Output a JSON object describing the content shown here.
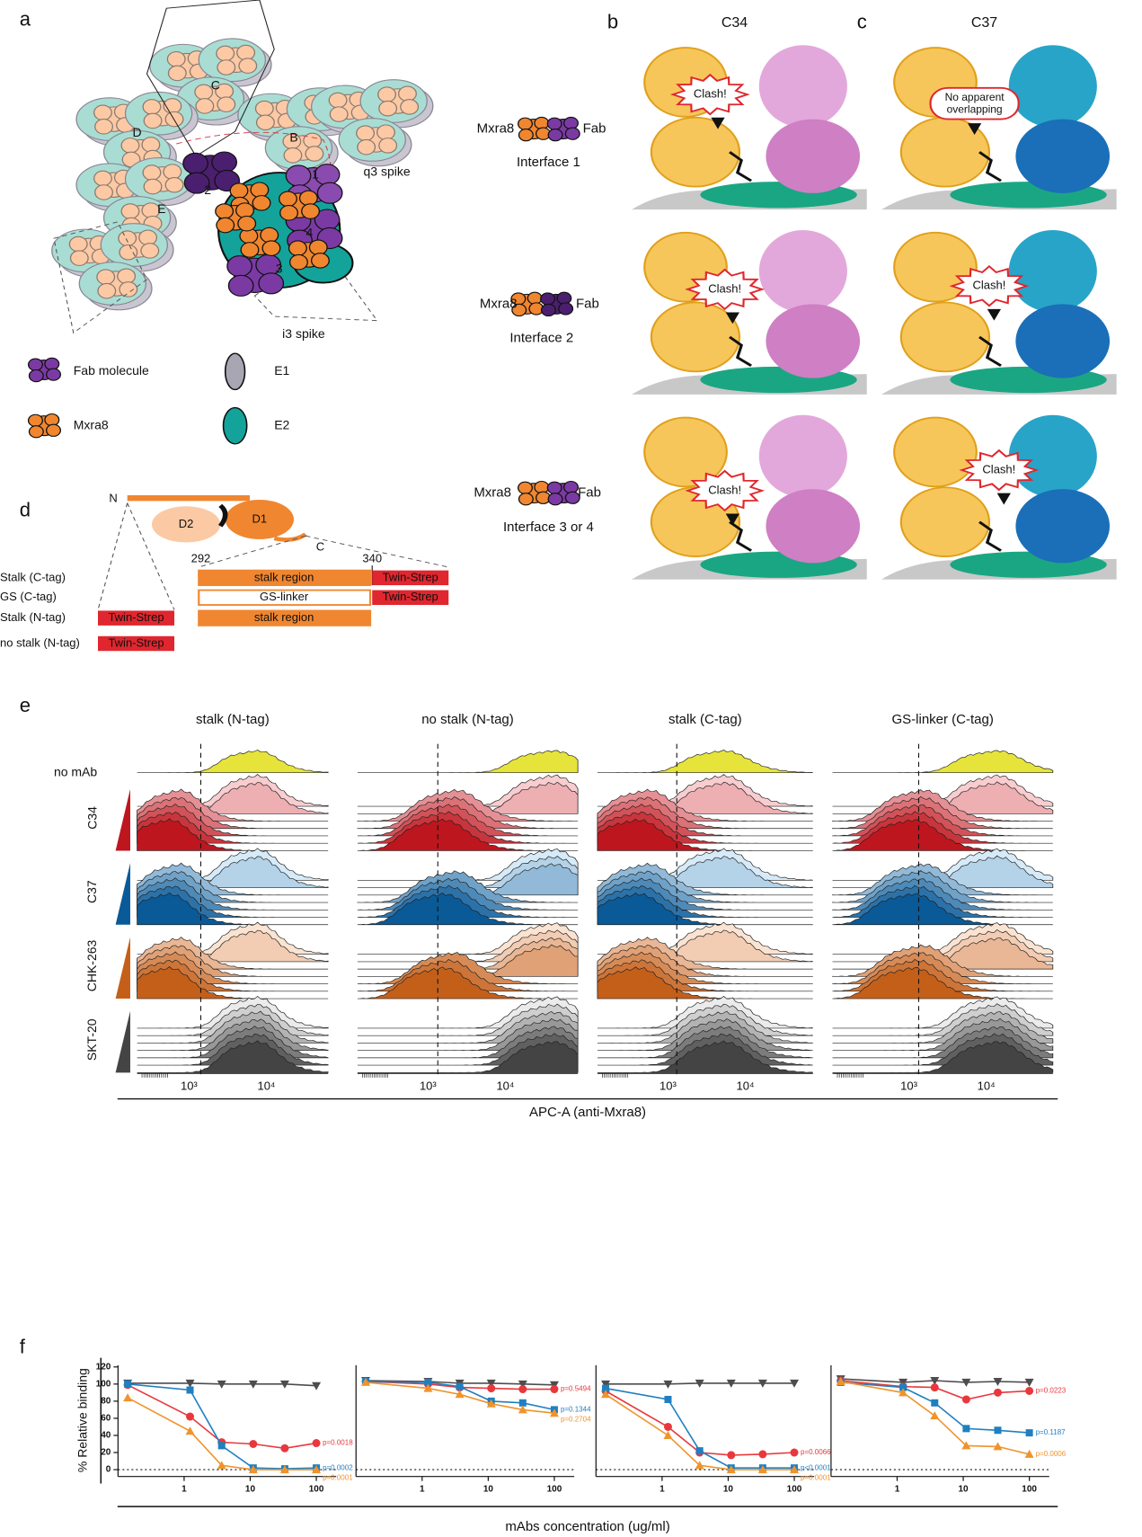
{
  "panel_labels": [
    "a",
    "b",
    "c",
    "d",
    "e",
    "f"
  ],
  "panel_a": {
    "spikes": [
      "C",
      "D",
      "B",
      "E"
    ],
    "interfaces": [
      "1",
      "2",
      "3",
      "4"
    ],
    "q3_label": "q3 spike",
    "i3_label": "i3 spike",
    "legend": [
      "Fab molecule",
      "Mxra8",
      "E1",
      "E2"
    ]
  },
  "panel_b": {
    "title": "C34",
    "rows": [
      {
        "left": "Mxra8",
        "right": "Fab",
        "interface": "Interface 1",
        "callout": "Clash!"
      },
      {
        "left": "Mxra8",
        "right": "Fab",
        "interface": "Interface 2",
        "callout": "Clash!"
      },
      {
        "left": "Mxra8",
        "right": "Fab",
        "interface": "Interface 3 or 4",
        "callout": "Clash!"
      }
    ]
  },
  "panel_c": {
    "title": "C37",
    "callouts": [
      [
        "No apparent",
        "overlapping"
      ],
      [
        "Clash!"
      ],
      [
        "Clash!"
      ]
    ]
  },
  "panel_d": {
    "N": "N",
    "C": "C",
    "D1": "D1",
    "D2": "D2",
    "start": "292",
    "end": "340",
    "rows": [
      {
        "label": "Stalk (C-tag)",
        "body": "stalk region",
        "tag": "Twin-Strep"
      },
      {
        "label": "GS (C-tag)",
        "body": "GS-linker",
        "tag": "Twin-Strep"
      },
      {
        "label": "Stalk (N-tag)",
        "body": "stalk region",
        "tag": "Twin-Strep"
      },
      {
        "label": "no stalk (N-tag)",
        "tag": "Twin-Strep"
      }
    ]
  },
  "panel_e": {
    "columns": [
      "stalk (N-tag)",
      "no stalk (N-tag)",
      "stalk (C-tag)",
      "GS-linker (C-tag)"
    ],
    "rows": [
      "no mAb",
      "C34",
      "C37",
      "CHK-263",
      "SKT-20"
    ],
    "tick_labels": [
      "10³",
      "10⁴"
    ],
    "xlabel": "APC-A (anti-Mxra8)"
  },
  "panel_f": {
    "ylabel": "% Relative binding",
    "xlabel": "mAbs concentration (ug/ml)"
  },
  "chart_data": [
    {
      "type": "line",
      "xscale": "log",
      "x": [
        0.14,
        1.23,
        3.7,
        11.1,
        33.3,
        100
      ],
      "xlim": [
        0.1,
        200
      ],
      "xticks": [
        1,
        10,
        100
      ],
      "ylim": [
        -8,
        122
      ],
      "yticks": [
        0,
        20,
        40,
        60,
        80,
        100,
        120
      ],
      "hline": 0,
      "series": [
        {
          "color": "#4d4d4d",
          "marker": "v",
          "values": [
            101,
            101,
            100,
            100,
            100,
            98
          ]
        },
        {
          "color": "#e8383d",
          "marker": "o",
          "values": [
            99,
            62,
            32,
            30,
            25,
            31
          ],
          "p_label": "p=0.0018"
        },
        {
          "color": "#1f7fc1",
          "marker": "s",
          "values": [
            100,
            93,
            28,
            2,
            1,
            2
          ],
          "p_label": "p=0.0002"
        },
        {
          "color": "#f0932b",
          "marker": "^",
          "values": [
            84,
            45,
            5,
            0,
            0,
            0
          ],
          "p_label": "p=0.0001"
        }
      ]
    },
    {
      "type": "line",
      "xscale": "log",
      "x": [
        0.14,
        1.23,
        3.7,
        11.1,
        33.3,
        100
      ],
      "xlim": [
        0.1,
        200
      ],
      "xticks": [
        1,
        10,
        100
      ],
      "ylim": [
        -8,
        122
      ],
      "hline": 0,
      "series": [
        {
          "color": "#4d4d4d",
          "marker": "v",
          "values": [
            104,
            103,
            101,
            101,
            100,
            99
          ]
        },
        {
          "color": "#e8383d",
          "marker": "o",
          "values": [
            103,
            100,
            96,
            95,
            94,
            94
          ],
          "p_label": "p=0.5494"
        },
        {
          "color": "#1f7fc1",
          "marker": "s",
          "values": [
            103,
            102,
            97,
            80,
            78,
            70
          ],
          "p_label": "p=0.1344"
        },
        {
          "color": "#f0932b",
          "marker": "^",
          "values": [
            102,
            95,
            88,
            77,
            70,
            66
          ],
          "p_label": "p=0.2704"
        }
      ]
    },
    {
      "type": "line",
      "xscale": "log",
      "x": [
        0.14,
        1.23,
        3.7,
        11.1,
        33.3,
        100
      ],
      "xlim": [
        0.1,
        200
      ],
      "xticks": [
        1,
        10,
        100
      ],
      "ylim": [
        -8,
        122
      ],
      "hline": 0,
      "series": [
        {
          "color": "#4d4d4d",
          "marker": "v",
          "values": [
            100,
            100,
            101,
            101,
            101,
            101
          ]
        },
        {
          "color": "#e8383d",
          "marker": "o",
          "values": [
            92,
            50,
            20,
            17,
            18,
            20
          ],
          "p_label": "p=0.0066"
        },
        {
          "color": "#1f7fc1",
          "marker": "s",
          "values": [
            95,
            82,
            22,
            2,
            2,
            2
          ],
          "p_label": "p<0.0001"
        },
        {
          "color": "#f0932b",
          "marker": "^",
          "values": [
            88,
            40,
            5,
            0,
            0,
            0
          ],
          "p_label": "p=0.0001"
        }
      ]
    },
    {
      "type": "line",
      "xscale": "log",
      "x": [
        0.14,
        1.23,
        3.7,
        11.1,
        33.3,
        100
      ],
      "xlim": [
        0.1,
        200
      ],
      "xticks": [
        1,
        10,
        100
      ],
      "ylim": [
        -8,
        122
      ],
      "hline": 0,
      "series": [
        {
          "color": "#4d4d4d",
          "marker": "v",
          "values": [
            106,
            102,
            104,
            102,
            103,
            102
          ]
        },
        {
          "color": "#e8383d",
          "marker": "o",
          "values": [
            104,
            97,
            96,
            82,
            90,
            92
          ],
          "p_label": "p=0.0223"
        },
        {
          "color": "#1f7fc1",
          "marker": "s",
          "values": [
            102,
            96,
            78,
            48,
            46,
            43
          ],
          "p_label": "p=0.1187"
        },
        {
          "color": "#f0932b",
          "marker": "^",
          "values": [
            103,
            90,
            63,
            28,
            27,
            18
          ],
          "p_label": "p=0.0006"
        }
      ]
    }
  ]
}
